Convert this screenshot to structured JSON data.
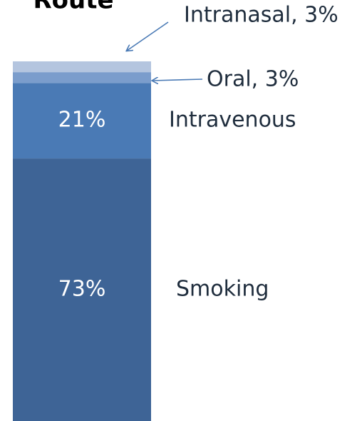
{
  "chart_data": {
    "type": "stacked-bar",
    "title": "Route",
    "ylim": [
      0,
      100
    ],
    "series": [
      {
        "name": "Smoking",
        "color": "#3e6496",
        "values": [
          73
        ],
        "value_labels": [
          "73%"
        ]
      },
      {
        "name": "Intravenous",
        "color": "#4a7ab5",
        "values": [
          21
        ],
        "value_labels": [
          "21%"
        ]
      },
      {
        "name": "Oral",
        "color": "#7b9dcc",
        "values": [
          3
        ],
        "value_labels": [
          "Oral, 3%"
        ]
      },
      {
        "name": "Intranasal",
        "color": "#b4c5df",
        "values": [
          3
        ],
        "value_labels": [
          "Intranasal, 3%"
        ]
      }
    ]
  }
}
